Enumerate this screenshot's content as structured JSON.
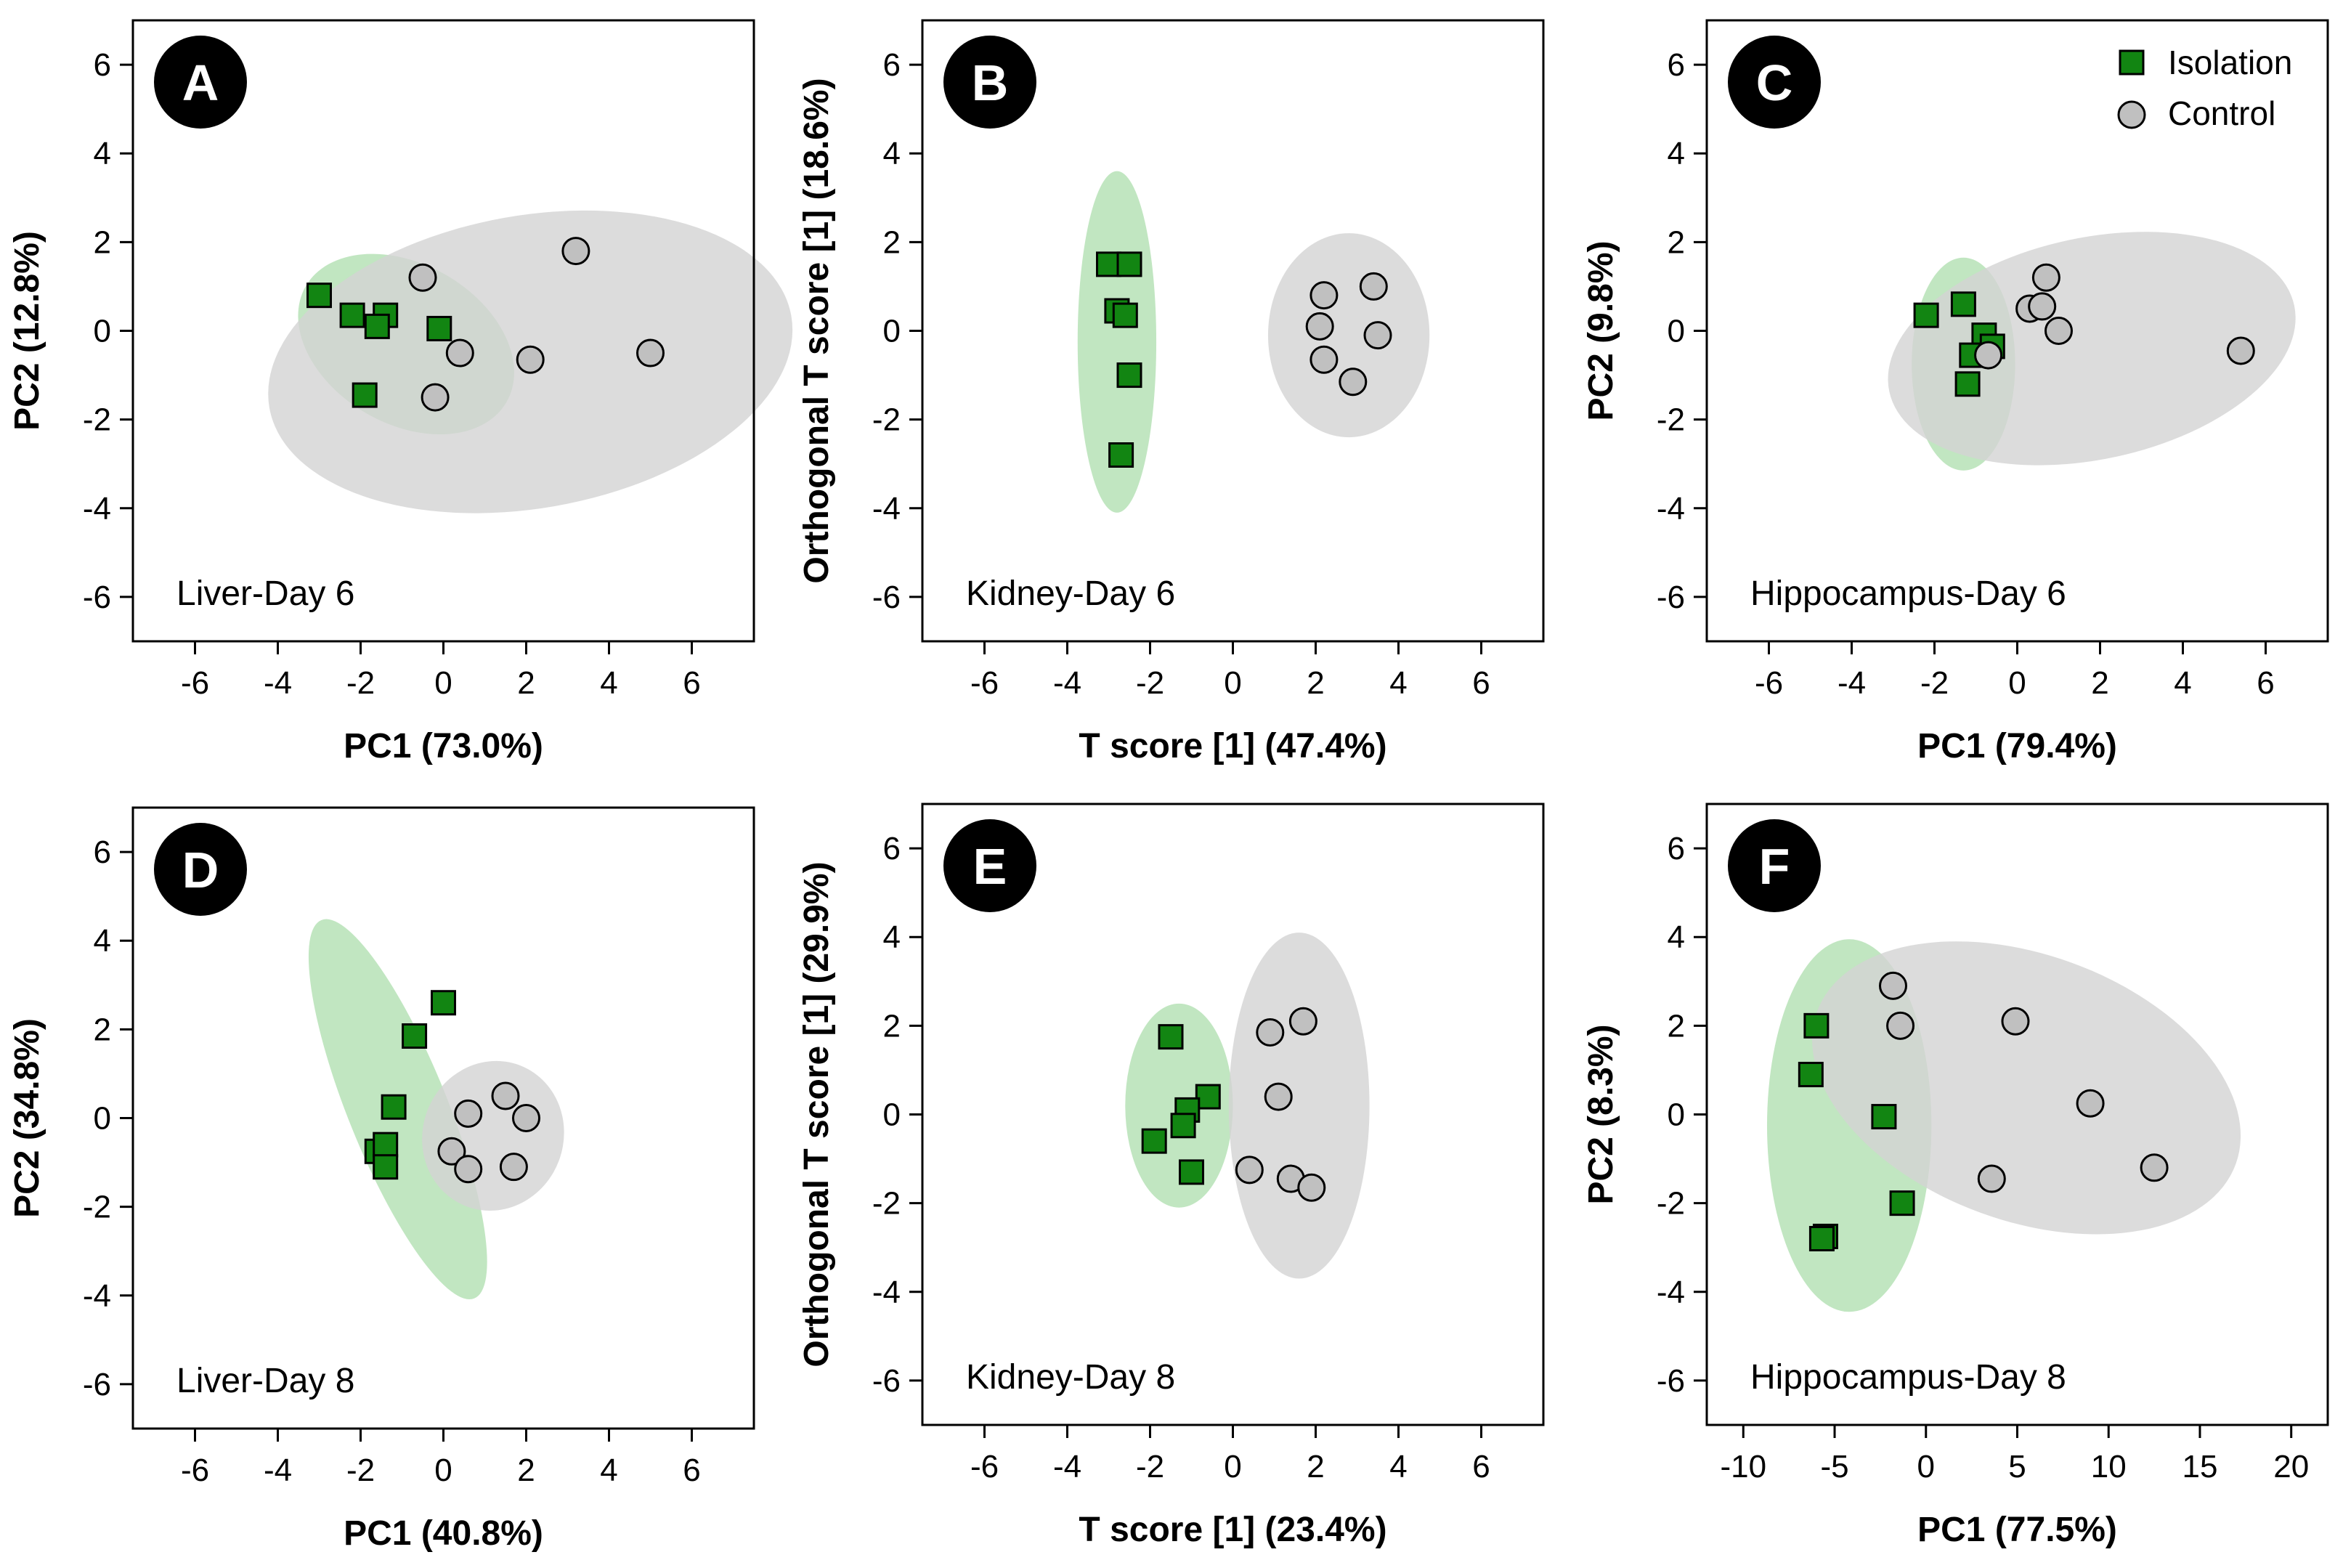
{
  "colors": {
    "isolation_fill": "#128512",
    "isolation_ellipse": "#b6e2b6",
    "control_fill": "#c0c0c0",
    "control_ellipse": "#d3d3d3",
    "badge": "#000000"
  },
  "legend": {
    "isolation": "Isolation",
    "control": "Control"
  },
  "chart_data": [
    {
      "type": "scatter",
      "panel": "A",
      "note": "Liver-Day 6",
      "xlabel": "PC1 (73.0%)",
      "ylabel": "PC2 (12.8%)",
      "xlim": [
        -7.5,
        7.5
      ],
      "ylim": [
        -7,
        7
      ],
      "xticks": [
        -6,
        -4,
        -2,
        0,
        2,
        4,
        6
      ],
      "yticks": [
        -6,
        -4,
        -2,
        0,
        2,
        4,
        6
      ],
      "series": [
        {
          "name": "Isolation",
          "marker": "square",
          "x": [
            -3.0,
            -2.2,
            -1.4,
            -1.6,
            -0.1,
            -1.9
          ],
          "y": [
            0.8,
            0.35,
            0.35,
            0.1,
            0.05,
            -1.45
          ],
          "ellipse": {
            "cx": -0.9,
            "cy": -0.3,
            "rx": 2.8,
            "ry": 1.8,
            "angle": -30
          }
        },
        {
          "name": "Control",
          "marker": "circle",
          "x": [
            -0.5,
            0.4,
            -0.2,
            2.1,
            3.2,
            5.0
          ],
          "y": [
            1.2,
            -0.5,
            -1.5,
            -0.65,
            1.8,
            -0.5
          ],
          "ellipse": {
            "cx": 2.1,
            "cy": -0.7,
            "rx": 6.4,
            "ry": 3.3,
            "angle": 10
          }
        }
      ]
    },
    {
      "type": "scatter",
      "panel": "B",
      "note": "Kidney-Day 6",
      "xlabel": "T score [1] (47.4%)",
      "ylabel": "Orthogonal T score [1] (18.6%)",
      "xlim": [
        -7.5,
        7.5
      ],
      "ylim": [
        -7,
        7
      ],
      "xticks": [
        -6,
        -4,
        -2,
        0,
        2,
        4,
        6
      ],
      "yticks": [
        -6,
        -4,
        -2,
        0,
        2,
        4,
        6
      ],
      "series": [
        {
          "name": "Isolation",
          "marker": "square",
          "x": [
            -3.0,
            -2.5,
            -2.8,
            -2.6,
            -2.5,
            -2.7
          ],
          "y": [
            1.5,
            1.5,
            0.45,
            0.35,
            -1.0,
            -2.8
          ],
          "ellipse": {
            "cx": -2.8,
            "cy": -0.25,
            "rx": 0.95,
            "ry": 3.85,
            "angle": 0
          }
        },
        {
          "name": "Control",
          "marker": "circle",
          "x": [
            2.2,
            3.4,
            2.1,
            3.5,
            2.2,
            2.9
          ],
          "y": [
            0.8,
            1.0,
            0.1,
            -0.1,
            -0.65,
            -1.15
          ],
          "ellipse": {
            "cx": 2.8,
            "cy": -0.1,
            "rx": 1.95,
            "ry": 2.3,
            "angle": 0
          }
        }
      ]
    },
    {
      "type": "scatter",
      "panel": "C",
      "note": "Hippocampus-Day 6",
      "xlabel": "PC1 (79.4%)",
      "ylabel": "PC2 (9.8%)",
      "xlim": [
        -7.5,
        7.5
      ],
      "ylim": [
        -7,
        7
      ],
      "xticks": [
        -6,
        -4,
        -2,
        0,
        2,
        4,
        6
      ],
      "yticks": [
        -6,
        -4,
        -2,
        0,
        2,
        4,
        6
      ],
      "series": [
        {
          "name": "Isolation",
          "marker": "square",
          "x": [
            -2.2,
            -1.3,
            -0.8,
            -1.1,
            -0.6,
            -1.2
          ],
          "y": [
            0.35,
            0.6,
            -0.1,
            -0.55,
            -0.35,
            -1.2
          ],
          "ellipse": {
            "cx": -1.3,
            "cy": -0.75,
            "rx": 1.25,
            "ry": 2.4,
            "angle": 0
          }
        },
        {
          "name": "Control",
          "marker": "circle",
          "x": [
            0.7,
            0.3,
            0.6,
            1.0,
            -0.7,
            5.4
          ],
          "y": [
            1.2,
            0.5,
            0.55,
            0.0,
            -0.55,
            -0.45
          ],
          "ellipse": {
            "cx": 1.8,
            "cy": -0.4,
            "rx": 5.0,
            "ry": 2.5,
            "angle": 12
          }
        }
      ]
    },
    {
      "type": "scatter",
      "panel": "D",
      "note": "Liver-Day 8",
      "xlabel": "PC1 (40.8%)",
      "ylabel": "PC2 (34.8%)",
      "xlim": [
        -7.5,
        7.5
      ],
      "ylim": [
        -7,
        7
      ],
      "xticks": [
        -6,
        -4,
        -2,
        0,
        2,
        4,
        6
      ],
      "yticks": [
        -6,
        -4,
        -2,
        0,
        2,
        4,
        6
      ],
      "series": [
        {
          "name": "Isolation",
          "marker": "square",
          "x": [
            0.0,
            -0.7,
            -1.2,
            -1.6,
            -1.4,
            -1.4
          ],
          "y": [
            2.6,
            1.85,
            0.25,
            -0.75,
            -0.6,
            -1.1
          ],
          "ellipse": {
            "cx": -1.1,
            "cy": 0.2,
            "rx": 1.2,
            "ry": 4.6,
            "angle": 22
          }
        },
        {
          "name": "Control",
          "marker": "circle",
          "x": [
            0.6,
            1.5,
            2.0,
            0.2,
            0.6,
            1.7
          ],
          "y": [
            0.1,
            0.5,
            0.0,
            -0.75,
            -1.15,
            -1.1
          ],
          "ellipse": {
            "cx": 1.2,
            "cy": -0.4,
            "rx": 1.7,
            "ry": 1.7,
            "angle": -20
          }
        }
      ]
    },
    {
      "type": "scatter",
      "panel": "E",
      "note": "Kidney-Day 8",
      "xlabel": "T score [1] (23.4%)",
      "ylabel": "Orthogonal T score [1] (29.9%)",
      "xlim": [
        -7.5,
        7.5
      ],
      "ylim": [
        -7,
        7
      ],
      "xticks": [
        -6,
        -4,
        -2,
        0,
        2,
        4,
        6
      ],
      "yticks": [
        -6,
        -4,
        -2,
        0,
        2,
        4,
        6
      ],
      "series": [
        {
          "name": "Isolation",
          "marker": "square",
          "x": [
            -1.5,
            -0.6,
            -1.1,
            -1.2,
            -1.9,
            -1.0
          ],
          "y": [
            1.75,
            0.4,
            0.1,
            -0.25,
            -0.6,
            -1.3
          ],
          "ellipse": {
            "cx": -1.3,
            "cy": 0.2,
            "rx": 1.3,
            "ry": 2.3,
            "angle": 0
          }
        },
        {
          "name": "Control",
          "marker": "circle",
          "x": [
            0.9,
            1.7,
            1.1,
            0.4,
            1.4,
            1.9
          ],
          "y": [
            1.85,
            2.1,
            0.4,
            -1.25,
            -1.45,
            -1.65
          ],
          "ellipse": {
            "cx": 1.6,
            "cy": 0.2,
            "rx": 1.7,
            "ry": 3.9,
            "angle": 0
          }
        }
      ]
    },
    {
      "type": "scatter",
      "panel": "F",
      "note": "Hippocampus-Day 8",
      "xlabel": "PC1 (77.5%)",
      "ylabel": "PC2 (8.3%)",
      "xlim": [
        -12,
        22
      ],
      "ylim": [
        -7,
        7
      ],
      "xticks": [
        -10,
        -5,
        0,
        5,
        10,
        15,
        20
      ],
      "yticks": [
        -6,
        -4,
        -2,
        0,
        2,
        4,
        6
      ],
      "series": [
        {
          "name": "Isolation",
          "marker": "square",
          "x": [
            -6.0,
            -6.3,
            -2.3,
            -1.3,
            -5.5,
            -5.7
          ],
          "y": [
            2.0,
            0.9,
            -0.05,
            -2.0,
            -2.75,
            -2.8
          ],
          "ellipse": {
            "cx": -4.2,
            "cy": -0.25,
            "rx": 4.5,
            "ry": 4.2,
            "angle": 0
          }
        },
        {
          "name": "Control",
          "marker": "circle",
          "x": [
            -1.8,
            -1.4,
            4.9,
            9.0,
            3.6,
            12.5
          ],
          "y": [
            2.9,
            2.0,
            2.1,
            0.25,
            -1.45,
            -1.2
          ],
          "ellipse": {
            "cx": 5.5,
            "cy": 0.6,
            "rx": 12.2,
            "ry": 3.0,
            "angle": -20
          }
        }
      ]
    }
  ]
}
